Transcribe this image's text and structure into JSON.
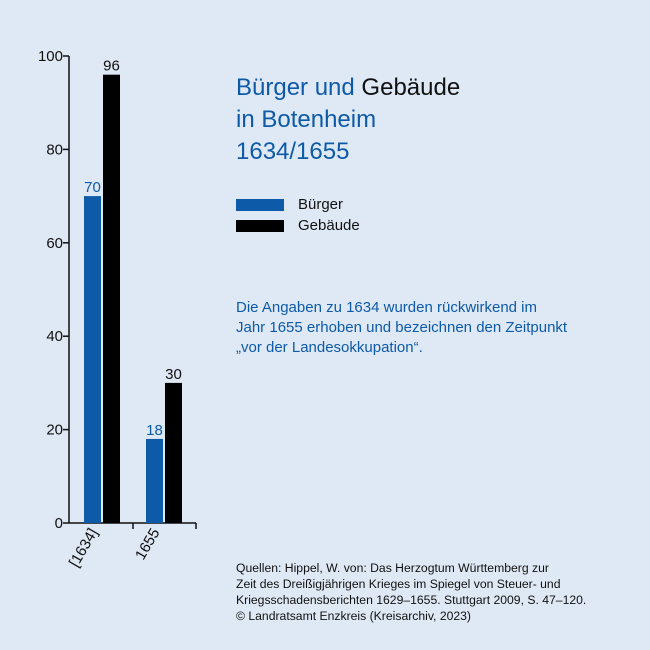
{
  "title": {
    "line1_part1": "Bürger und ",
    "line1_part2": "Gebäude",
    "line2": "in Botenheim",
    "line3": "1634/1655"
  },
  "note": {
    "line1": "Die Angaben zu 1634 wurden rückwirkend im",
    "line2": "Jahr 1655 erhoben und bezeichnen den Zeitpunkt",
    "line3": "„vor der Landesokkupation“."
  },
  "sources": {
    "line1": "Quellen: Hippel, W. von: Das Herzogtum Württemberg zur",
    "line2": "Zeit des Dreißigjährigen Krieges im Spiegel von Steuer- und",
    "line3": "Kriegsschadensberichten 1629–1655. Stuttgart 2009, S. 47–120.",
    "line4": "© Landratsamt Enzkreis (Kreisarchiv, 2023)"
  },
  "colors": {
    "background": "#dfe9f5",
    "buerger": "#0d5aa8",
    "gebaeude": "#000000",
    "axis": "#111111"
  },
  "chart_data": {
    "type": "bar",
    "categories": [
      "[1634]",
      "1655"
    ],
    "series": [
      {
        "name": "Bürger",
        "values": [
          70,
          18
        ]
      },
      {
        "name": "Gebäude",
        "values": [
          96,
          30
        ]
      }
    ],
    "ylim": [
      0,
      100
    ],
    "yticks": [
      0,
      20,
      40,
      60,
      80,
      100
    ],
    "grid": false,
    "legend": "right",
    "xlabel": "",
    "ylabel": ""
  }
}
